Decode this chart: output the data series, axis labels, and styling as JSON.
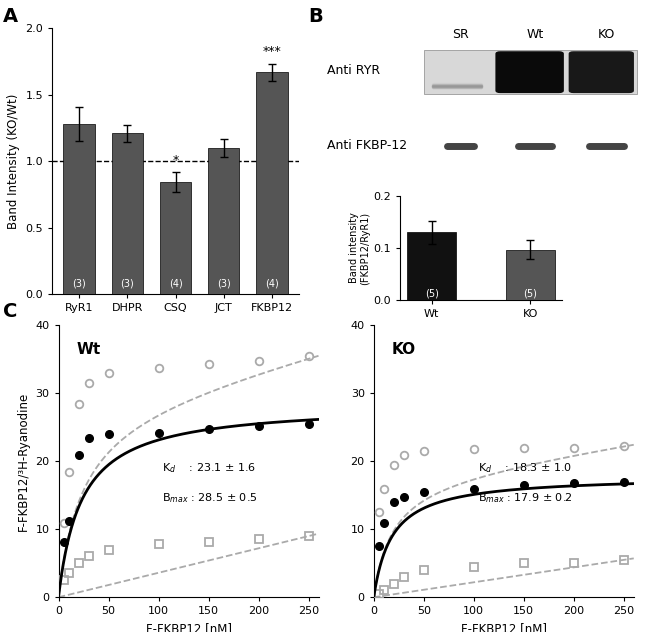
{
  "panel_A": {
    "categories": [
      "RyR1",
      "DHPR",
      "CSQ",
      "JCT",
      "FKBP12"
    ],
    "values": [
      1.28,
      1.21,
      0.84,
      1.1,
      1.67
    ],
    "errors": [
      0.13,
      0.065,
      0.075,
      0.065,
      0.065
    ],
    "counts": [
      "(3)",
      "(3)",
      "(4)",
      "(3)",
      "(4)"
    ],
    "bar_color": "#555555",
    "ylabel": "Band Intensity (KO/Wt)",
    "ylim": [
      0.0,
      2.0
    ],
    "yticks": [
      0.0,
      0.5,
      1.0,
      1.5,
      2.0
    ],
    "sig_csq": "*",
    "sig_fkbp": "***"
  },
  "panel_B_bar": {
    "categories": [
      "Wt",
      "KO"
    ],
    "values": [
      0.13,
      0.097
    ],
    "errors": [
      0.022,
      0.018
    ],
    "counts": [
      "(5)",
      "(5)"
    ],
    "bar_colors": [
      "#111111",
      "#555555"
    ],
    "ylabel": "Band intensity\n(FKBP12/RyR1)",
    "ylim": [
      0.0,
      0.2
    ],
    "yticks": [
      0.0,
      0.1,
      0.2
    ]
  },
  "blot_col_labels": [
    "SR",
    "Wt",
    "KO"
  ],
  "blot_row_labels": [
    "Anti RYR",
    "Anti FKBP-12"
  ],
  "panel_C_wt": {
    "label": "Wt",
    "x_data": [
      5,
      10,
      20,
      30,
      50,
      100,
      150,
      200,
      250
    ],
    "specific_y": [
      8.2,
      11.2,
      21.0,
      23.5,
      24.0,
      24.2,
      24.8,
      25.2,
      25.5
    ],
    "total_y": [
      11.0,
      18.5,
      28.5,
      31.5,
      33.0,
      33.8,
      34.3,
      34.8,
      35.5
    ],
    "nonsp_y": [
      2.5,
      3.5,
      5.0,
      6.0,
      7.0,
      7.8,
      8.2,
      8.5,
      9.0
    ],
    "Kd_val": 23.1,
    "Bmax_val": 28.5,
    "Kd_str": "23.1 ± 1.6",
    "Bmax_str": "28.5 ± 0.5",
    "xlim": [
      0,
      260
    ],
    "ylim": [
      0,
      40
    ],
    "xticks": [
      0,
      50,
      100,
      150,
      200,
      250
    ],
    "yticks": [
      0,
      10,
      20,
      30,
      40
    ]
  },
  "panel_C_ko": {
    "label": "KO",
    "x_data": [
      5,
      10,
      20,
      30,
      50,
      100,
      150,
      200,
      250
    ],
    "specific_y": [
      7.5,
      11.0,
      14.0,
      14.8,
      15.5,
      16.0,
      16.5,
      16.8,
      17.0
    ],
    "total_y": [
      12.5,
      16.0,
      19.5,
      21.0,
      21.5,
      21.8,
      22.0,
      22.0,
      22.2
    ],
    "nonsp_y": [
      0.5,
      1.0,
      2.0,
      3.0,
      4.0,
      4.5,
      5.0,
      5.0,
      5.5
    ],
    "Kd_val": 18.3,
    "Bmax_val": 17.9,
    "Kd_str": "18.3 ± 1.0",
    "Bmax_str": "17.9 ± 0.2",
    "xlim": [
      0,
      260
    ],
    "ylim": [
      0,
      40
    ],
    "xticks": [
      0,
      50,
      100,
      150,
      200,
      250
    ],
    "yticks": [
      0,
      10,
      20,
      30,
      40
    ]
  },
  "panel_C_xlabel": "F-FKBP12 [nM]",
  "panel_C_ylabel": "F-FKBP12/³H-Ryanodine",
  "gray_color": "#aaaaaa",
  "bar_color_A": "#555555"
}
